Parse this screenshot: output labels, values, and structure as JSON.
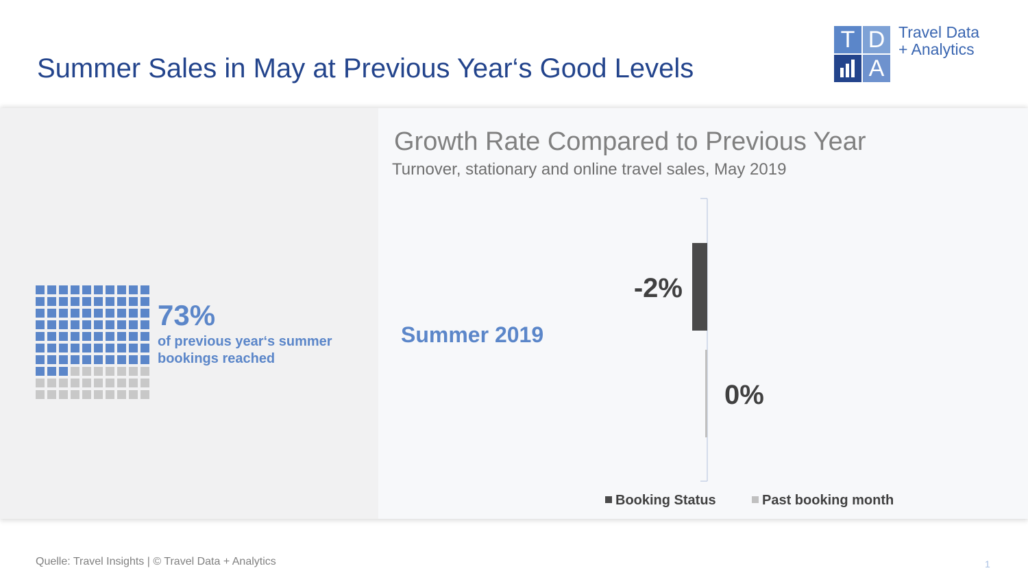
{
  "header": {
    "title": "Summer Sales in May at Previous Year‘s Good Levels"
  },
  "logo": {
    "letters": [
      "T",
      "D",
      "",
      "A"
    ],
    "line1": "Travel Data",
    "line2": "+ Analytics"
  },
  "summary": {
    "percent": "73%",
    "description": "of previous year‘s summer bookings reached",
    "waffle_filled": 73,
    "waffle_total": 100,
    "filled_color": "#5b86c9",
    "empty_color": "#c8c8c8"
  },
  "chart_data": {
    "type": "bar",
    "orientation": "horizontal",
    "title": "Growth Rate Compared to Previous Year",
    "subtitle": "Turnover, stationary and online travel sales, May 2019",
    "categories": [
      "Summer 2019"
    ],
    "series": [
      {
        "name": "Booking Status",
        "values": [
          -2
        ],
        "label": "-2%",
        "color": "#4a4a4a"
      },
      {
        "name": "Past booking month",
        "values": [
          0
        ],
        "label": "0%",
        "color": "#c0c0c0"
      }
    ],
    "legend": "bottom",
    "grid": false,
    "category_color": "#5b86c9"
  },
  "footer": {
    "source": "Quelle: Travel Insights   |   © Travel Data + Analytics",
    "page": "1"
  }
}
